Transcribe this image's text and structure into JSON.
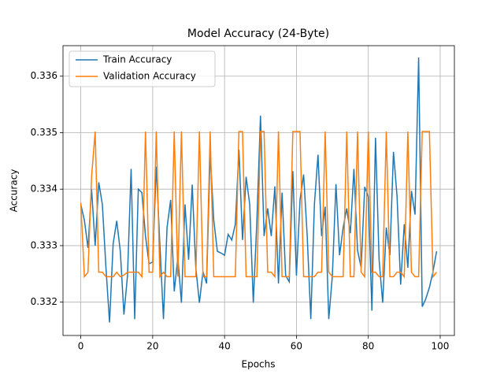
{
  "chart_data": {
    "type": "line",
    "title": "Model Accuracy (24-Byte)",
    "x_label": "Epochs",
    "y_label": "Accuracy",
    "x": [
      0,
      1,
      2,
      3,
      4,
      5,
      6,
      7,
      8,
      9,
      10,
      11,
      12,
      13,
      14,
      15,
      16,
      17,
      18,
      19,
      20,
      21,
      22,
      23,
      24,
      25,
      26,
      27,
      28,
      29,
      30,
      31,
      32,
      33,
      34,
      35,
      36,
      37,
      38,
      39,
      40,
      41,
      42,
      43,
      44,
      45,
      46,
      47,
      48,
      49,
      50,
      51,
      52,
      53,
      54,
      55,
      56,
      57,
      58,
      59,
      60,
      61,
      62,
      63,
      64,
      65,
      66,
      67,
      68,
      69,
      70,
      71,
      72,
      73,
      74,
      75,
      76,
      77,
      78,
      79,
      80,
      81,
      82,
      83,
      84,
      85,
      86,
      87,
      88,
      89,
      90,
      91,
      92,
      93,
      94,
      95,
      96,
      97,
      98,
      99
    ],
    "series": [
      {
        "name": "Train Accuracy",
        "color": "#1f77b4",
        "values": [
          0.33373,
          0.33345,
          0.33296,
          0.334,
          0.333,
          0.33412,
          0.33373,
          0.33261,
          0.33164,
          0.33303,
          0.33344,
          0.3329,
          0.33178,
          0.33247,
          0.33436,
          0.3317,
          0.334,
          0.33394,
          0.33317,
          0.33268,
          0.33271,
          0.3344,
          0.33303,
          0.3317,
          0.33332,
          0.33381,
          0.33219,
          0.33279,
          0.33199,
          0.33373,
          0.33275,
          0.33408,
          0.33261,
          0.33199,
          0.33254,
          0.33233,
          0.33463,
          0.33345,
          0.3329,
          0.33287,
          0.33283,
          0.3332,
          0.3331,
          0.33338,
          0.3347,
          0.3331,
          0.33422,
          0.33373,
          0.33199,
          0.33345,
          0.3353,
          0.33317,
          0.33366,
          0.33317,
          0.33405,
          0.33233,
          0.33394,
          0.33247,
          0.33236,
          0.33432,
          0.33247,
          0.33381,
          0.33426,
          0.33317,
          0.3317,
          0.33373,
          0.33461,
          0.33317,
          0.33369,
          0.3317,
          0.33247,
          0.33409,
          0.33283,
          0.33332,
          0.33366,
          0.33322,
          0.33436,
          0.33292,
          0.33261,
          0.33404,
          0.33387,
          0.33185,
          0.33491,
          0.33275,
          0.33199,
          0.33332,
          0.33283,
          0.33466,
          0.33387,
          0.33231,
          0.33338,
          0.33261,
          0.33397,
          0.33355,
          0.33633,
          0.33192,
          0.33206,
          0.33226,
          0.33254,
          0.3329
        ]
      },
      {
        "name": "Validation Accuracy",
        "color": "#ff7f0e",
        "values": [
          0.33376,
          0.33245,
          0.33253,
          0.33422,
          0.33502,
          0.33253,
          0.33253,
          0.33245,
          0.33245,
          0.33245,
          0.33253,
          0.33245,
          0.33248,
          0.33253,
          0.33253,
          0.33253,
          0.33253,
          0.33245,
          0.33502,
          0.33253,
          0.33253,
          0.33502,
          0.33245,
          0.33253,
          0.33245,
          0.33245,
          0.33502,
          0.33245,
          0.33502,
          0.33245,
          0.33245,
          0.33245,
          0.33245,
          0.33502,
          0.33245,
          0.33245,
          0.33502,
          0.33245,
          0.33245,
          0.33245,
          0.33245,
          0.33245,
          0.33245,
          0.33245,
          0.33502,
          0.33502,
          0.33245,
          0.33245,
          0.33245,
          0.33245,
          0.33502,
          0.33502,
          0.33253,
          0.33253,
          0.33245,
          0.33502,
          0.33245,
          0.33245,
          0.33245,
          0.33502,
          0.33502,
          0.33502,
          0.33245,
          0.33245,
          0.33245,
          0.33245,
          0.33253,
          0.33253,
          0.33502,
          0.33253,
          0.33245,
          0.33245,
          0.33245,
          0.33245,
          0.33502,
          0.33245,
          0.33245,
          0.33502,
          0.33253,
          0.33245,
          0.33502,
          0.33253,
          0.33253,
          0.33245,
          0.33245,
          0.33502,
          0.33245,
          0.33245,
          0.33253,
          0.33253,
          0.33245,
          0.33502,
          0.33253,
          0.33245,
          0.33245,
          0.33502,
          0.33502,
          0.33502,
          0.33245,
          0.33253
        ]
      }
    ],
    "xlim": [
      -4.95,
      103.95
    ],
    "ylim": [
      0.33141,
      0.33654
    ],
    "xticks": [
      0,
      20,
      40,
      60,
      80,
      100
    ],
    "yticks": [
      0.332,
      0.333,
      0.334,
      0.335,
      0.336
    ],
    "grid": true,
    "legend": "upper left"
  }
}
